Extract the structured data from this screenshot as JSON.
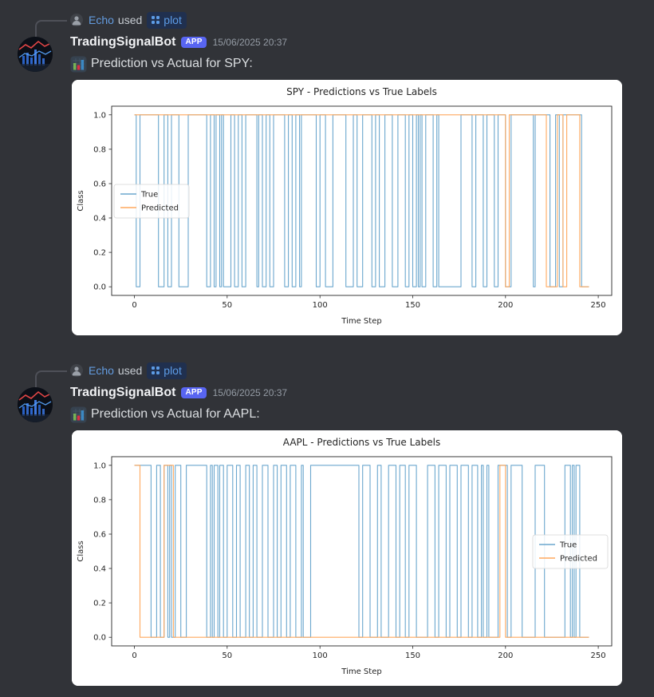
{
  "app": {
    "background": "#313338",
    "attachment_bg": "#ffffff"
  },
  "colors": {
    "blurple": "#5865f2",
    "link_blue": "#5d9ce6",
    "reply_user": "#649ce0",
    "timestamp_grey": "#949ba4",
    "message_text": "#dbdee1",
    "series_true": "#6BA7CE",
    "series_predicted": "#FFA95F",
    "chart_text": "#262626"
  },
  "messages": [
    {
      "reply": {
        "user": "Echo",
        "action": "used",
        "command": "plot"
      },
      "author": "TradingSignalBot",
      "badge": "APP",
      "timestamp": "15/06/2025 20:37",
      "emoji": "bar-chart-emoji",
      "text": "Prediction vs Actual for SPY:"
    },
    {
      "reply": {
        "user": "Echo",
        "action": "used",
        "command": "plot"
      },
      "author": "TradingSignalBot",
      "badge": "APP",
      "timestamp": "15/06/2025 20:37",
      "emoji": "bar-chart-emoji",
      "text": "Prediction vs Actual for AAPL:"
    }
  ],
  "chart_data": [
    {
      "type": "line",
      "title": "SPY - Predictions vs True Labels",
      "xlabel": "Time Step",
      "ylabel": "Class",
      "xticks": [
        0,
        50,
        100,
        150,
        200,
        250
      ],
      "yticks": [
        0.0,
        0.2,
        0.4,
        0.6,
        0.8,
        1.0
      ],
      "xlim": [
        -12.25,
        257.25
      ],
      "ylim": [
        -0.05,
        1.05
      ],
      "x_end": 245,
      "grid": false,
      "legend_loc": "center left",
      "series": [
        {
          "name": "True",
          "color": "#6BA7CE",
          "base": 1,
          "inverted_runs": [
            [
              1,
              3
            ],
            [
              13,
              16
            ],
            [
              18,
              20
            ],
            [
              24,
              29
            ],
            [
              39,
              41
            ],
            [
              43,
              44
            ],
            [
              46,
              47
            ],
            [
              48,
              52
            ],
            [
              54,
              56
            ],
            [
              58,
              60
            ],
            [
              66,
              67
            ],
            [
              69,
              71
            ],
            [
              73,
              75
            ],
            [
              81,
              83
            ],
            [
              85,
              87
            ],
            [
              89,
              90
            ],
            [
              98,
              100
            ],
            [
              103,
              107
            ],
            [
              114,
              118
            ],
            [
              120,
              123
            ],
            [
              128,
              130
            ],
            [
              132,
              135
            ],
            [
              139,
              142
            ],
            [
              146,
              148
            ],
            [
              150,
              152
            ],
            [
              153,
              154
            ],
            [
              155,
              157
            ],
            [
              161,
              163
            ],
            [
              164,
              176
            ],
            [
              182,
              184
            ],
            [
              188,
              190
            ],
            [
              194,
              196
            ],
            [
              200,
              203
            ],
            [
              215,
              216
            ],
            [
              224,
              227
            ],
            [
              229,
              231
            ],
            [
              241,
              245
            ]
          ]
        },
        {
          "name": "Predicted",
          "color": "#FFA95F",
          "base": 1,
          "inverted_runs": [
            [
              200,
              202
            ],
            [
              222,
              228
            ],
            [
              231,
              233
            ],
            [
              240,
              245
            ]
          ]
        }
      ]
    },
    {
      "type": "line",
      "title": "AAPL - Predictions vs True Labels",
      "xlabel": "Time Step",
      "ylabel": "Class",
      "xticks": [
        0,
        50,
        100,
        150,
        200,
        250
      ],
      "yticks": [
        0.0,
        0.2,
        0.4,
        0.6,
        0.8,
        1.0
      ],
      "xlim": [
        -12.25,
        257.25
      ],
      "ylim": [
        -0.05,
        1.05
      ],
      "x_end": 245,
      "grid": false,
      "legend_loc": "center right",
      "series": [
        {
          "name": "True",
          "color": "#6BA7CE",
          "base": 1,
          "inverted_runs": [
            [
              9,
              12
            ],
            [
              14,
              16
            ],
            [
              18,
              19
            ],
            [
              20,
              22
            ],
            [
              25,
              28
            ],
            [
              39,
              41
            ],
            [
              42,
              43
            ],
            [
              45,
              46
            ],
            [
              48,
              50
            ],
            [
              53,
              55
            ],
            [
              57,
              60
            ],
            [
              62,
              64
            ],
            [
              66,
              69
            ],
            [
              72,
              75
            ],
            [
              77,
              79
            ],
            [
              82,
              84
            ],
            [
              87,
              90
            ],
            [
              91,
              95
            ],
            [
              121,
              123
            ],
            [
              127,
              131
            ],
            [
              133,
              137
            ],
            [
              141,
              143
            ],
            [
              146,
              148
            ],
            [
              152,
              158
            ],
            [
              162,
              164
            ],
            [
              168,
              170
            ],
            [
              174,
              176
            ],
            [
              180,
              182
            ],
            [
              185,
              187
            ],
            [
              188,
              190
            ],
            [
              191,
              196
            ],
            [
              201,
              203
            ],
            [
              209,
              216
            ],
            [
              221,
              232
            ],
            [
              235,
              236
            ],
            [
              237,
              238
            ],
            [
              240,
              245
            ]
          ]
        },
        {
          "name": "Predicted",
          "color": "#FFA95F",
          "base": 0,
          "inverted_runs": [
            [
              0,
              3
            ],
            [
              16,
              21
            ],
            [
              197,
              200
            ]
          ]
        }
      ]
    }
  ]
}
